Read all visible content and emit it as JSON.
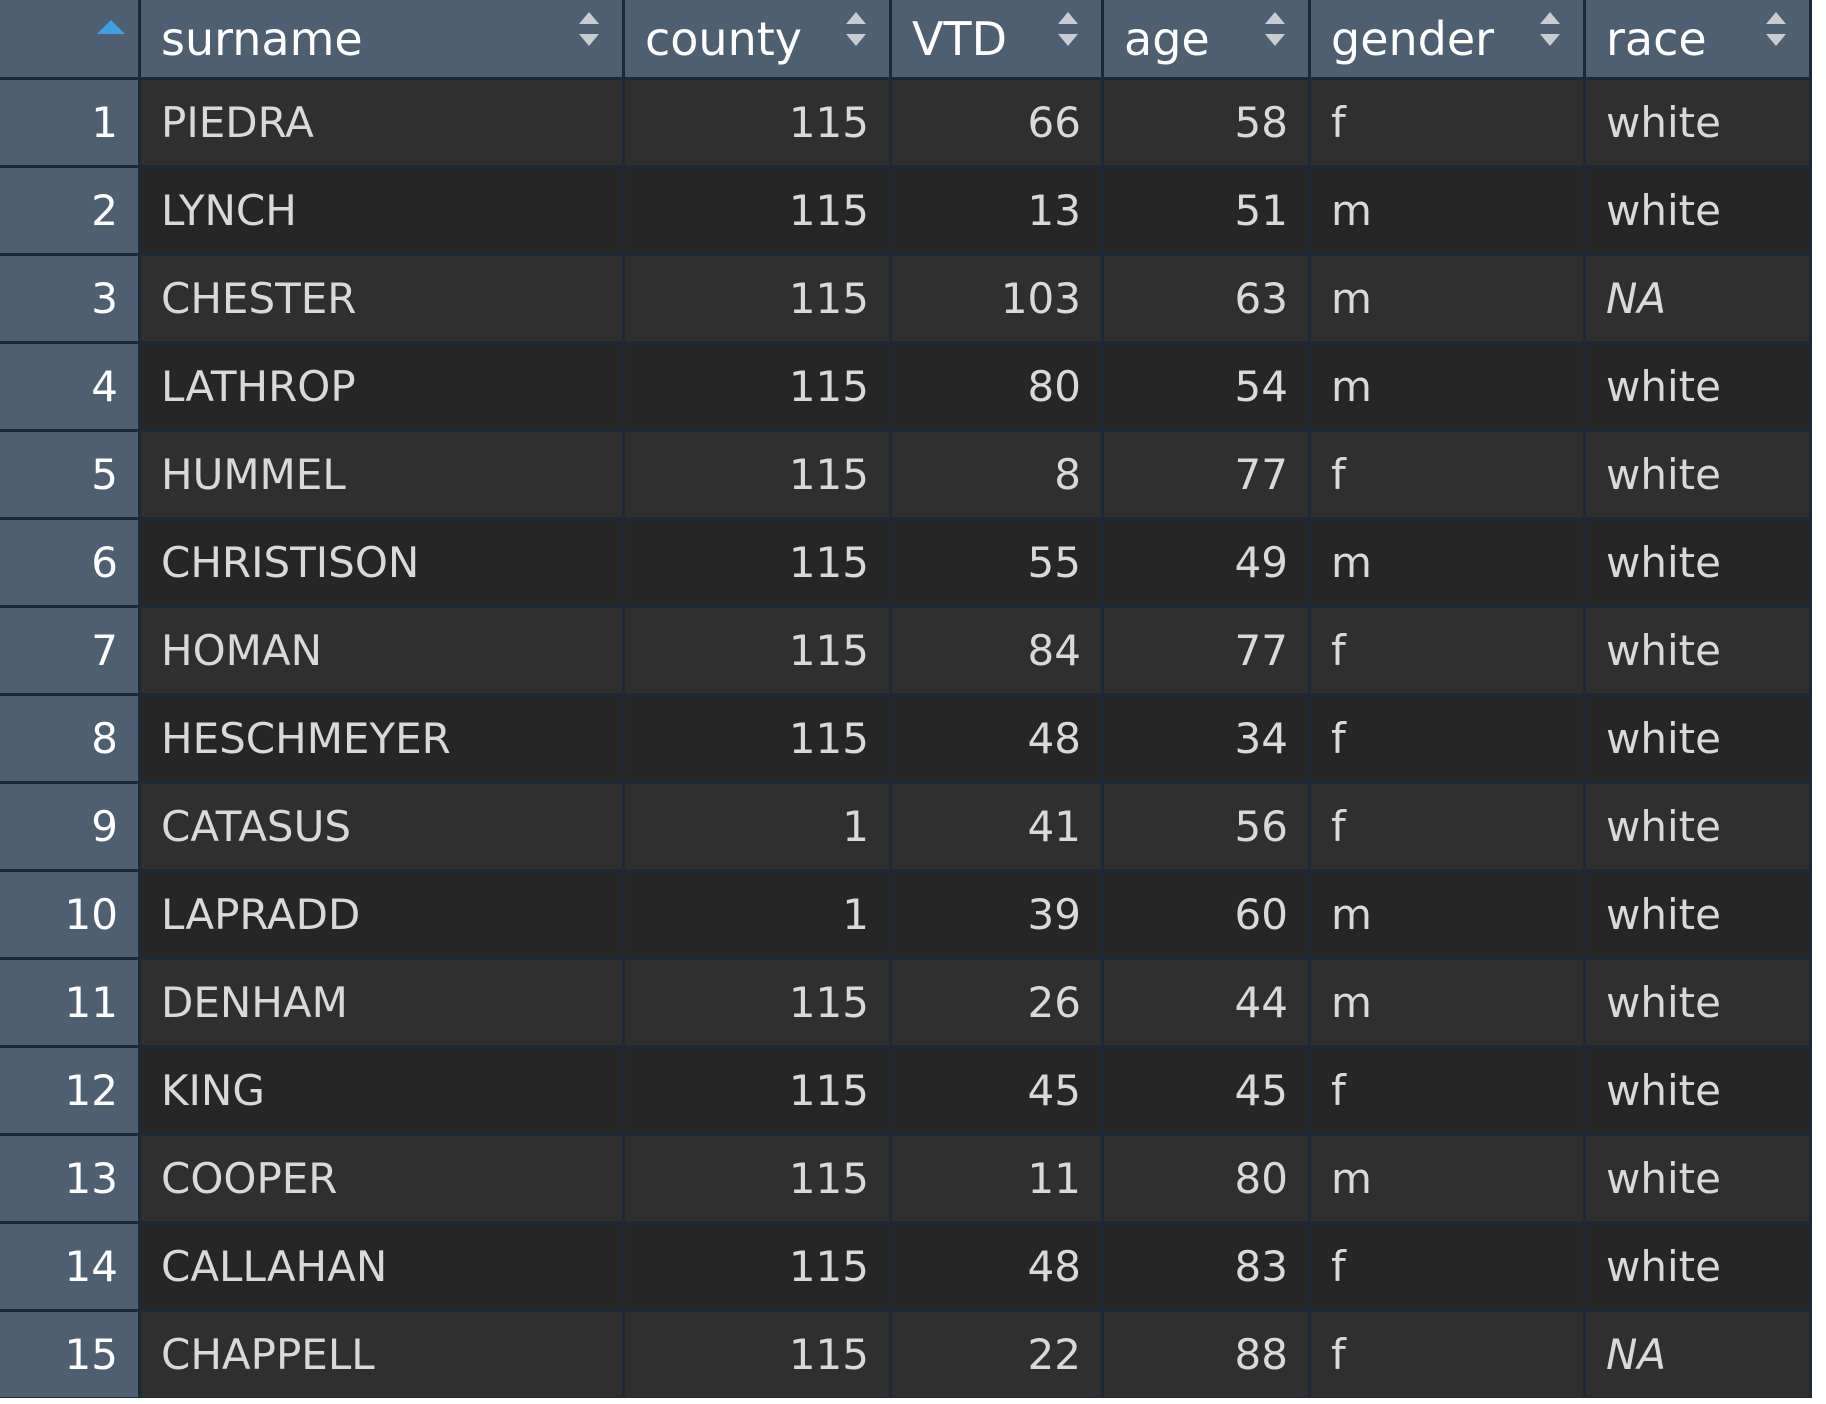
{
  "table": {
    "sorted_column": "row",
    "sort_direction": "ascending",
    "columns": [
      "surname",
      "county",
      "VTD",
      "age",
      "gender",
      "race"
    ],
    "rows": [
      {
        "n": "1",
        "surname": "PIEDRA",
        "county": "115",
        "vtd": "66",
        "age": "58",
        "gender": "f",
        "race": "white"
      },
      {
        "n": "2",
        "surname": "LYNCH",
        "county": "115",
        "vtd": "13",
        "age": "51",
        "gender": "m",
        "race": "white"
      },
      {
        "n": "3",
        "surname": "CHESTER",
        "county": "115",
        "vtd": "103",
        "age": "63",
        "gender": "m",
        "race": "NA"
      },
      {
        "n": "4",
        "surname": "LATHROP",
        "county": "115",
        "vtd": "80",
        "age": "54",
        "gender": "m",
        "race": "white"
      },
      {
        "n": "5",
        "surname": "HUMMEL",
        "county": "115",
        "vtd": "8",
        "age": "77",
        "gender": "f",
        "race": "white"
      },
      {
        "n": "6",
        "surname": "CHRISTISON",
        "county": "115",
        "vtd": "55",
        "age": "49",
        "gender": "m",
        "race": "white"
      },
      {
        "n": "7",
        "surname": "HOMAN",
        "county": "115",
        "vtd": "84",
        "age": "77",
        "gender": "f",
        "race": "white"
      },
      {
        "n": "8",
        "surname": "HESCHMEYER",
        "county": "115",
        "vtd": "48",
        "age": "34",
        "gender": "f",
        "race": "white"
      },
      {
        "n": "9",
        "surname": "CATASUS",
        "county": "1",
        "vtd": "41",
        "age": "56",
        "gender": "f",
        "race": "white"
      },
      {
        "n": "10",
        "surname": "LAPRADD",
        "county": "1",
        "vtd": "39",
        "age": "60",
        "gender": "m",
        "race": "white"
      },
      {
        "n": "11",
        "surname": "DENHAM",
        "county": "115",
        "vtd": "26",
        "age": "44",
        "gender": "m",
        "race": "white"
      },
      {
        "n": "12",
        "surname": "KING",
        "county": "115",
        "vtd": "45",
        "age": "45",
        "gender": "f",
        "race": "white"
      },
      {
        "n": "13",
        "surname": "COOPER",
        "county": "115",
        "vtd": "11",
        "age": "80",
        "gender": "m",
        "race": "white"
      },
      {
        "n": "14",
        "surname": "CALLAHAN",
        "county": "115",
        "vtd": "48",
        "age": "83",
        "gender": "f",
        "race": "white"
      },
      {
        "n": "15",
        "surname": "CHAPPELL",
        "county": "115",
        "vtd": "22",
        "age": "88",
        "gender": "f",
        "race": "NA"
      }
    ]
  },
  "icons": {
    "sort_ascending": "sort-ascending-icon",
    "sort_both": "sort-icon"
  },
  "colors": {
    "header_bg": "#4e5f71",
    "grid_line": "#1d2936",
    "row_odd": "#2f2f2f",
    "row_even": "#262626",
    "sort_active": "#3f9fe0"
  }
}
